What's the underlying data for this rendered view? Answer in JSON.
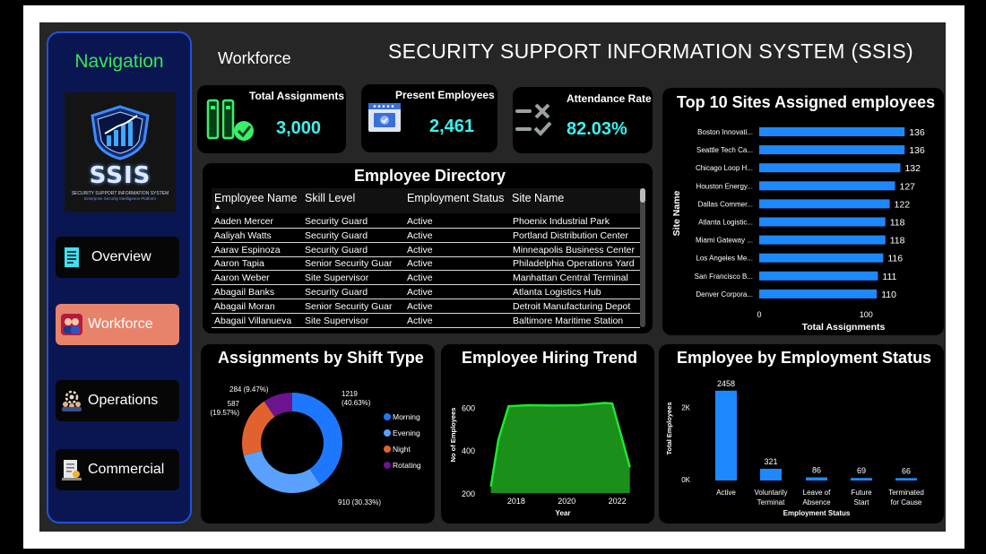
{
  "nav": {
    "title": "Navigation",
    "logo": {
      "text": "SSIS",
      "subtitle": "SECURITY SUPPORT INFORMATION SYSTEM",
      "tagline": "Enterprise Security Intelligence Platform"
    },
    "items": [
      {
        "label": "Overview",
        "icon": "document-icon"
      },
      {
        "label": "Workforce",
        "icon": "team-icon",
        "active": true
      },
      {
        "label": "Operations",
        "icon": "gear-people-icon"
      },
      {
        "label": "Commercial",
        "icon": "contract-icon"
      }
    ]
  },
  "header": {
    "page": "Workforce",
    "title": "SECURITY SUPPORT INFORMATION SYSTEM (SSIS)"
  },
  "kpis": [
    {
      "label": "Total Assignments",
      "value": "3,000",
      "icon": "assignments-icon"
    },
    {
      "label": "Present Employees",
      "value": "2,461",
      "icon": "id-card-icon"
    },
    {
      "label": "Attendance Rate",
      "value": "82.03%",
      "icon": "check-x-icon"
    }
  ],
  "directory": {
    "title": "Employee Directory",
    "columns": [
      "Employee Name",
      "Skill Level",
      "Employment Status",
      "Site Name"
    ],
    "rows": [
      [
        "Aaden Mercer",
        "Security Guard",
        "Active",
        "Phoenix Industrial Park"
      ],
      [
        "Aaliyah Watts",
        "Security Guard",
        "Active",
        "Portland Distribution Center"
      ],
      [
        "Aarav Espinoza",
        "Security Guard",
        "Active",
        "Minneapolis Business Center"
      ],
      [
        "Aaron Tapia",
        "Senior Security Guar",
        "Active",
        "Philadelphia Operations Yard"
      ],
      [
        "Aaron Weber",
        "Site Supervisor",
        "Active",
        "Manhattan Central Terminal"
      ],
      [
        "Abagail Banks",
        "Security Guard",
        "Active",
        "Atlanta Logistics Hub"
      ],
      [
        "Abagail Moran",
        "Senior Security Guar",
        "Active",
        "Detroit Manufacturing Depot"
      ],
      [
        "Abagail Villanueva",
        "Site Supervisor",
        "Active",
        "Baltimore Maritime Station"
      ]
    ]
  },
  "colors": {
    "accent": "#1e88ff",
    "kpi_value": "#3df0ee",
    "nav_green": "#33e855",
    "area_green": "#1a8f1a",
    "active_nav": "#e8836b"
  },
  "chart_data": [
    {
      "type": "bar",
      "orientation": "horizontal",
      "title": "Top 10 Sites Assigned employees",
      "xlabel": "Total Assignments",
      "ylabel": "Site Name",
      "categories": [
        "Boston Innovati...",
        "Seattle Tech Ca...",
        "Chicago Loop H...",
        "Houston Energy...",
        "Dallas Commer...",
        "Atlanta Logistic...",
        "Miami Gateway ...",
        "Los Angeles Me...",
        "San Francisco B...",
        "Denver Corpora..."
      ],
      "values": [
        136,
        136,
        132,
        127,
        122,
        118,
        118,
        116,
        111,
        110
      ],
      "xticks": [
        "0",
        "100"
      ],
      "xlim": [
        0,
        140
      ]
    },
    {
      "type": "pie",
      "donut": true,
      "title": "Assignments by Shift Type",
      "labels": [
        "Morning",
        "Evening",
        "Night",
        "Rotating"
      ],
      "values": [
        1219,
        910,
        587,
        284
      ],
      "percents": [
        "40.63%",
        "30.33%",
        "19.57%",
        "9.47%"
      ],
      "colors": [
        "#1e78ff",
        "#5aa0ff",
        "#e2622f",
        "#6b148e"
      ]
    },
    {
      "type": "area",
      "title": "Employee Hiring Trend",
      "xlabel": "Year",
      "ylabel": "No of Employees",
      "x": [
        2017.0,
        2017.3,
        2017.7,
        2018.5,
        2019.5,
        2020.5,
        2021.5,
        2021.8,
        2022.2,
        2022.5
      ],
      "y": [
        230,
        450,
        605,
        610,
        608,
        610,
        620,
        618,
        450,
        320
      ],
      "xticks": [
        "2018",
        "2020",
        "2022"
      ],
      "yticks": [
        "200",
        "400",
        "600"
      ],
      "ylim": [
        200,
        660
      ],
      "xlim": [
        2016.8,
        2022.9
      ]
    },
    {
      "type": "bar",
      "title": "Employee by Employment Status",
      "xlabel": "Employment Status",
      "ylabel": "Total Employees",
      "categories": [
        "Active",
        "Voluntarily Terminat",
        "Leave of Absence",
        "Future Start",
        "Terminated for Cause"
      ],
      "category_lines": [
        [
          "Active"
        ],
        [
          "Voluntarily",
          "Terminat"
        ],
        [
          "Leave of",
          "Absence"
        ],
        [
          "Future",
          "Start"
        ],
        [
          "Terminated",
          "for Cause"
        ]
      ],
      "values": [
        2458,
        321,
        86,
        69,
        66
      ],
      "yticks": [
        "0K",
        "2K"
      ],
      "ylim": [
        0,
        2600
      ]
    }
  ]
}
